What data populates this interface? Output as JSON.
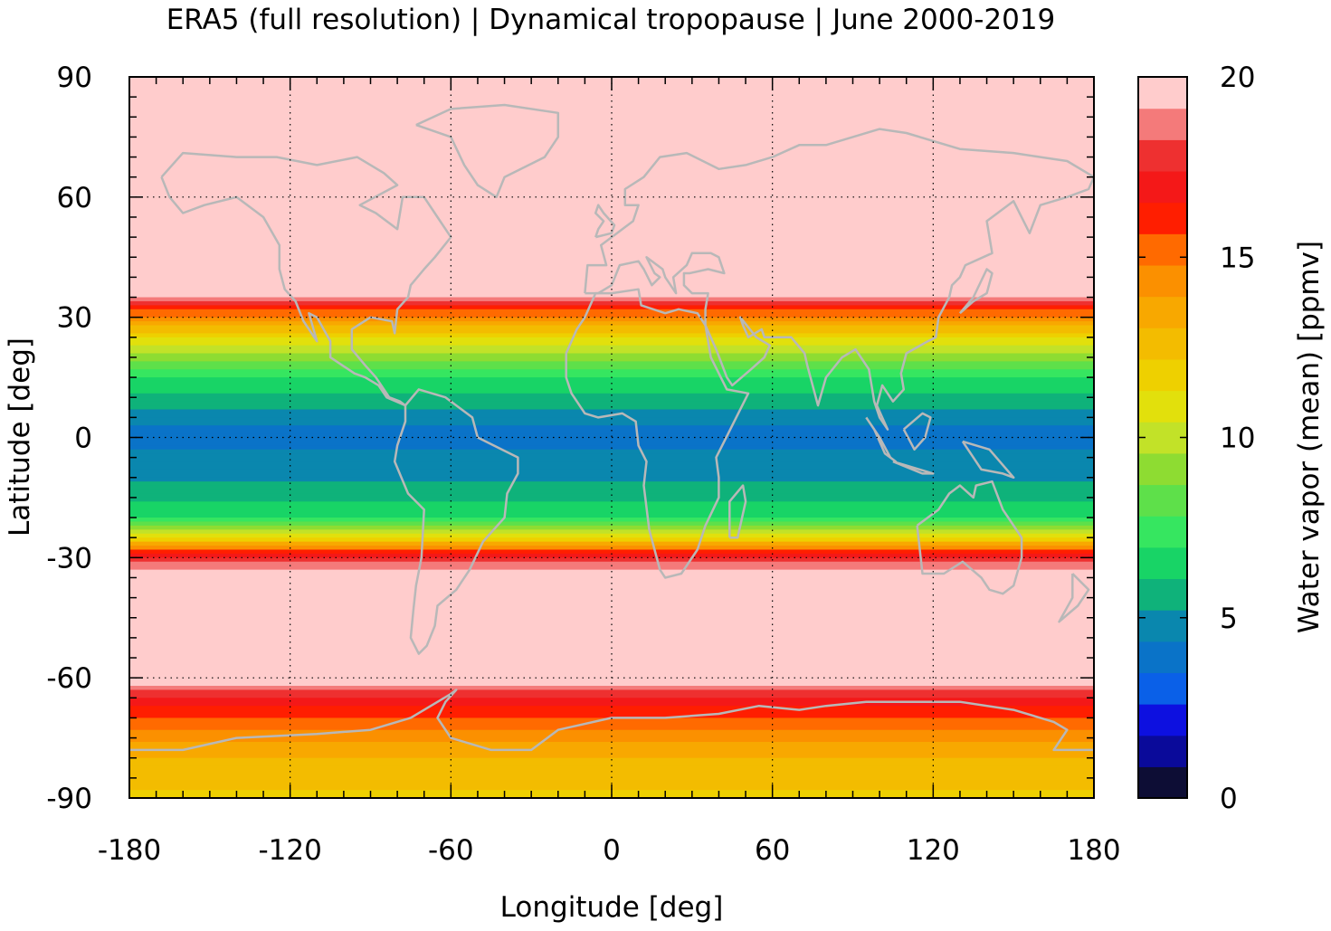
{
  "chart_data": {
    "type": "heatmap",
    "title": "ERA5 (full resolution) | Dynamical tropopause | June 2000-2019",
    "xlabel": "Longitude [deg]",
    "ylabel": "Latitude [deg]",
    "xlim": [
      -180,
      180
    ],
    "ylim": [
      -90,
      90
    ],
    "x_ticks": [
      "-180",
      "-120",
      "-60",
      "0",
      "60",
      "120",
      "180"
    ],
    "x_tick_values": [
      -180,
      -120,
      -60,
      0,
      60,
      120,
      180
    ],
    "y_ticks": [
      "90",
      "60",
      "30",
      "0",
      "-30",
      "-60",
      "-90"
    ],
    "y_tick_values": [
      90,
      60,
      30,
      0,
      -30,
      -60,
      -90
    ],
    "grid": true,
    "grid_style": "dotted",
    "coastlines": true,
    "colorbar": {
      "label": "Water vapor (mean) [ppmv]",
      "range": [
        0,
        20
      ],
      "ticks": [
        "0",
        "5",
        "10",
        "15",
        "20"
      ],
      "tick_values": [
        0,
        5,
        10,
        15,
        20
      ],
      "levels": 20,
      "colors": [
        "#0d0d35",
        "#0a0a9a",
        "#0d10e0",
        "#0a60e8",
        "#0a73c8",
        "#0a87ae",
        "#0fb27a",
        "#18d466",
        "#36e660",
        "#5ee04a",
        "#8edc32",
        "#c2e228",
        "#e2e00c",
        "#eed000",
        "#f3bc00",
        "#f8a800",
        "#fb9000",
        "#ff6a00",
        "#ff1e00",
        "#f41818",
        "#ee3030",
        "#f47a7a",
        "#ffcccc"
      ]
    },
    "bands_ppmv": [
      {
        "lat": 90,
        "value": 20
      },
      {
        "lat": 50,
        "value": 20
      },
      {
        "lat": 36,
        "value": 20
      },
      {
        "lat": 32,
        "value": 16
      },
      {
        "lat": 28,
        "value": 13
      },
      {
        "lat": 22,
        "value": 10
      },
      {
        "lat": 15,
        "value": 7
      },
      {
        "lat": 8,
        "value": 5.5
      },
      {
        "lat": 5,
        "value": 4.5
      },
      {
        "lat": 0,
        "value": 4
      },
      {
        "lat": -5,
        "value": 4.5
      },
      {
        "lat": -13,
        "value": 5.5
      },
      {
        "lat": -20,
        "value": 7
      },
      {
        "lat": -25,
        "value": 11
      },
      {
        "lat": -28,
        "value": 15.5
      },
      {
        "lat": -31,
        "value": 18
      },
      {
        "lat": -34,
        "value": 20
      },
      {
        "lat": -60,
        "value": 20
      },
      {
        "lat": -66,
        "value": 17
      },
      {
        "lat": -72,
        "value": 15
      },
      {
        "lat": -80,
        "value": 13
      },
      {
        "lat": -90,
        "value": 12
      }
    ]
  }
}
